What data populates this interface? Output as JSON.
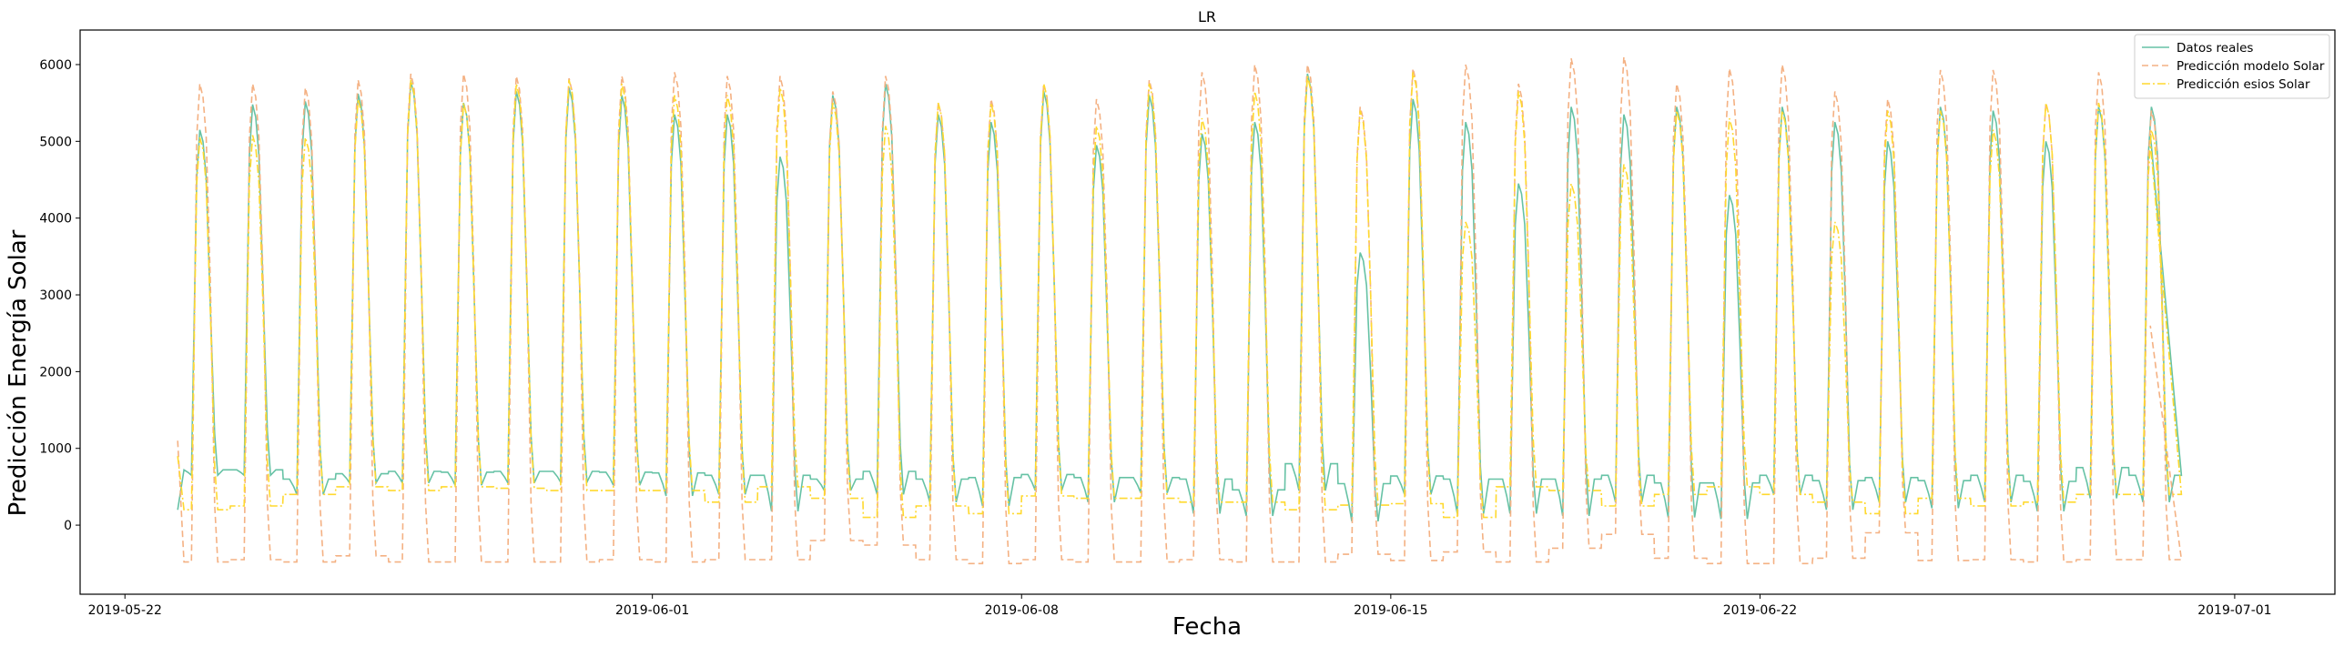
{
  "chart_data": {
    "type": "line",
    "title": "LR",
    "xlabel": "Fecha",
    "ylabel": "Predicción Energía Solar",
    "x_ticks": [
      "2019-05-22",
      "2019-06-01",
      "2019-06-08",
      "2019-06-15",
      "2019-06-22",
      "2019-07-01"
    ],
    "x_tick_values": [
      -1,
      9,
      16,
      23,
      30,
      39
    ],
    "x_range": [
      -1.85,
      40.9
    ],
    "x_tick_labels_note": "days from 2019-05-23 00:00",
    "y_ticks": [
      0,
      1000,
      2000,
      3000,
      4000,
      5000,
      6000
    ],
    "ylim": [
      -900,
      6450
    ],
    "legend_position": "top-right",
    "grid": false,
    "series": [
      {
        "name": "Datos reales",
        "color": "#66c2a5",
        "style": "solid",
        "start_day": 23,
        "days": 38,
        "daily_peak": [
          5150,
          5480,
          5520,
          5620,
          5780,
          5500,
          5650,
          5700,
          5600,
          5350,
          5350,
          4800,
          5600,
          5750,
          5350,
          5250,
          5650,
          4950,
          5600,
          5100,
          5250,
          5880,
          3550,
          5550,
          5250,
          4450,
          5450,
          5350,
          5450,
          4300,
          5450,
          5250,
          5000,
          5450,
          5400,
          5000,
          5450,
          5450
        ],
        "night_level": [
          720,
          720,
          600,
          670,
          700,
          690,
          700,
          700,
          690,
          680,
          650,
          650,
          600,
          700,
          600,
          620,
          660,
          620,
          620,
          600,
          460,
          800,
          540,
          640,
          600,
          600,
          600,
          650,
          550,
          550,
          650,
          580,
          620,
          580,
          650,
          570,
          750,
          650
        ],
        "night_floor": [
          650,
          650,
          400,
          550,
          550,
          520,
          550,
          560,
          520,
          380,
          400,
          180,
          450,
          400,
          300,
          250,
          450,
          300,
          420,
          150,
          120,
          450,
          50,
          400,
          150,
          150,
          120,
          300,
          100,
          80,
          400,
          200,
          300,
          220,
          300,
          180,
          350,
          300
        ],
        "start_value": 200,
        "end_value": 5100
      },
      {
        "name": "Predicción modelo Solar",
        "color": "#f4b183",
        "style": "dashed",
        "daily_peak": [
          5750,
          5750,
          5700,
          5800,
          5880,
          5880,
          5850,
          5820,
          5850,
          5900,
          5850,
          5850,
          5650,
          5850,
          5500,
          5550,
          5750,
          5550,
          5800,
          5900,
          6000,
          6000,
          5450,
          5950,
          6000,
          5750,
          6080,
          6100,
          5750,
          5950,
          6000,
          5650,
          5550,
          5930,
          5930,
          5500,
          5900,
          5400
        ],
        "night_floor": [
          -480,
          -450,
          -480,
          -400,
          -480,
          -480,
          -480,
          -480,
          -450,
          -480,
          -450,
          -450,
          -200,
          -260,
          -450,
          -500,
          -450,
          -480,
          -480,
          -450,
          -480,
          -480,
          -380,
          -460,
          -350,
          -480,
          -300,
          -120,
          -430,
          -500,
          -500,
          -430,
          -100,
          -460,
          -450,
          -480,
          -450,
          -450
        ],
        "start_value": 1100,
        "end_value": 2600
      },
      {
        "name": "Predicción esios Solar",
        "color": "#ffd92f",
        "style": "dashdot",
        "daily_peak": [
          5050,
          5080,
          5050,
          5550,
          5800,
          5500,
          5750,
          5800,
          5750,
          5600,
          5600,
          5700,
          5500,
          5200,
          5500,
          5500,
          5750,
          5200,
          5750,
          5300,
          5650,
          5850,
          5400,
          5900,
          3950,
          5650,
          4450,
          4700,
          5400,
          5300,
          5400,
          3950,
          5400,
          5400,
          5150,
          5500,
          5500,
          5150
        ],
        "night_floor": [
          200,
          250,
          400,
          500,
          450,
          500,
          480,
          450,
          450,
          450,
          300,
          500,
          350,
          100,
          250,
          150,
          380,
          350,
          350,
          300,
          300,
          200,
          260,
          280,
          100,
          500,
          450,
          250,
          400,
          500,
          400,
          300,
          150,
          350,
          250,
          300,
          400,
          400
        ],
        "start_value": 900,
        "end_value": 5000
      }
    ]
  }
}
